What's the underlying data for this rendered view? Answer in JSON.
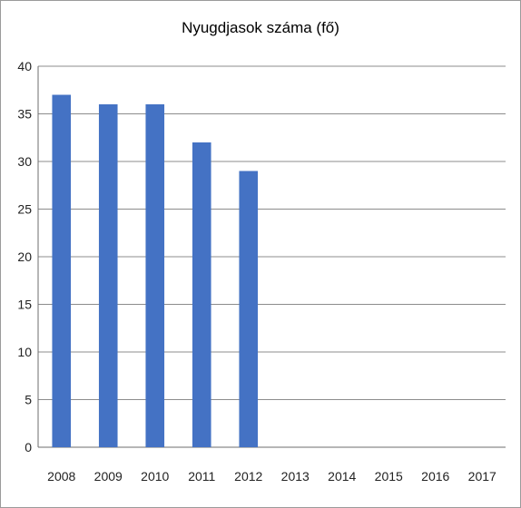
{
  "chart_data": {
    "type": "bar",
    "title": "Nyugdjasok száma (fő)",
    "xlabel": "",
    "ylabel": "",
    "categories": [
      "2008",
      "2009",
      "2010",
      "2011",
      "2012",
      "2013",
      "2014",
      "2015",
      "2016",
      "2017"
    ],
    "values": [
      37,
      36,
      36,
      32,
      29,
      null,
      null,
      null,
      null,
      null
    ],
    "ylim": [
      0,
      40
    ],
    "yticks": [
      0,
      5,
      10,
      15,
      20,
      25,
      30,
      35,
      40
    ],
    "grid": true,
    "legend": "none",
    "bar_color": "#4472C4",
    "grid_color": "#8c8c8c"
  }
}
